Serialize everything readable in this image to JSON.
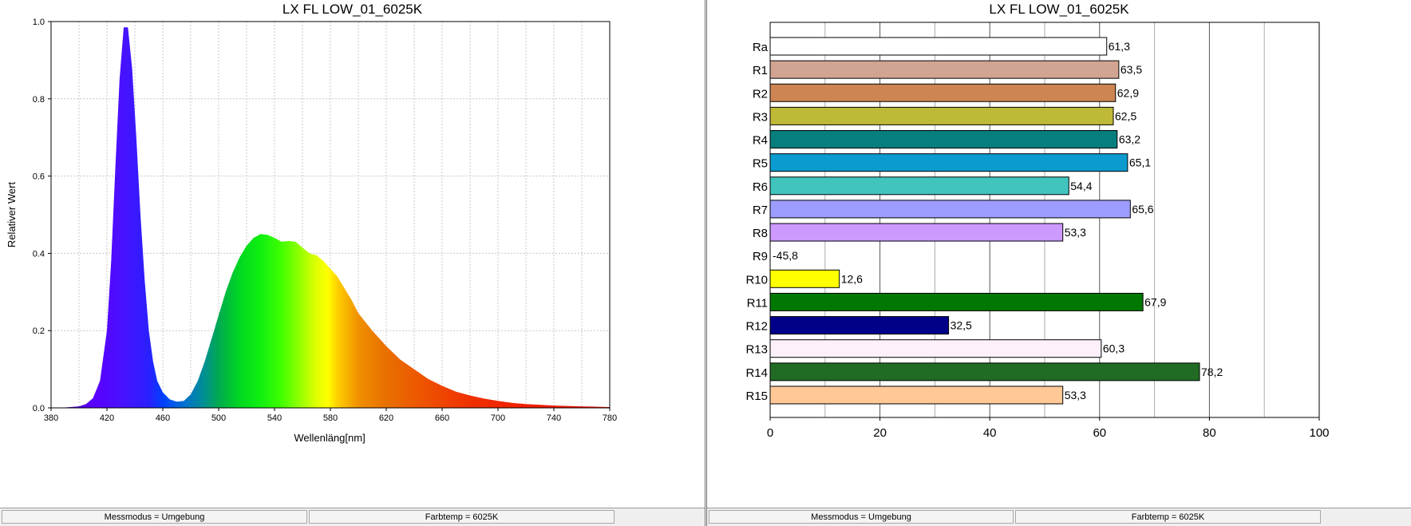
{
  "spectrum_panel": {
    "title": "LX FL LOW_01_6025K",
    "status": [
      "Messmodus = Umgebung",
      "Farbtemp = 6025K"
    ]
  },
  "cri_panel": {
    "title": "LX FL LOW_01_6025K",
    "status": [
      "Messmodus = Umgebung",
      "Farbtemp = 6025K"
    ]
  },
  "chart_data": [
    {
      "type": "area",
      "title": "LX FL LOW_01_6025K",
      "xlabel": "Wellenläng[nm]",
      "ylabel": "Relativer Wert",
      "xlim": [
        380,
        780
      ],
      "ylim": [
        0,
        1.0
      ],
      "x_ticks": [
        "380",
        "420",
        "460",
        "500",
        "540",
        "580",
        "620",
        "660",
        "700",
        "740",
        "780"
      ],
      "y_ticks": [
        "0.0",
        "0.2",
        "0.4",
        "0.6",
        "0.8",
        "1.0"
      ],
      "grid": true,
      "fill": "visible-spectrum gradient",
      "series": [
        {
          "x": [
            380,
            390,
            400,
            405,
            410,
            415,
            420,
            423,
            426,
            429,
            432,
            435,
            438,
            441,
            444,
            447,
            450,
            453,
            456,
            460,
            465,
            470,
            475,
            480,
            485,
            490,
            495,
            500,
            505,
            510,
            515,
            520,
            525,
            530,
            535,
            540,
            545,
            550,
            555,
            560,
            565,
            570,
            575,
            580,
            585,
            590,
            595,
            600,
            610,
            620,
            630,
            640,
            650,
            660,
            670,
            680,
            690,
            700,
            710,
            720,
            730,
            740,
            750,
            760,
            770,
            780
          ],
          "y": [
            0.0,
            0.001,
            0.004,
            0.01,
            0.025,
            0.07,
            0.2,
            0.38,
            0.62,
            0.85,
            0.985,
            0.985,
            0.88,
            0.7,
            0.5,
            0.33,
            0.2,
            0.12,
            0.07,
            0.04,
            0.022,
            0.016,
            0.018,
            0.035,
            0.07,
            0.12,
            0.18,
            0.24,
            0.3,
            0.35,
            0.39,
            0.42,
            0.44,
            0.45,
            0.448,
            0.44,
            0.43,
            0.432,
            0.43,
            0.415,
            0.4,
            0.395,
            0.38,
            0.36,
            0.34,
            0.31,
            0.28,
            0.245,
            0.2,
            0.16,
            0.125,
            0.1,
            0.075,
            0.057,
            0.042,
            0.032,
            0.024,
            0.018,
            0.013,
            0.01,
            0.008,
            0.006,
            0.005,
            0.004,
            0.003,
            0.002
          ]
        }
      ]
    },
    {
      "type": "bar",
      "orientation": "horizontal",
      "title": "LX FL LOW_01_6025K",
      "xlim": [
        0,
        100
      ],
      "x_ticks": [
        "0",
        "20",
        "40",
        "60",
        "80",
        "100"
      ],
      "categories": [
        "Ra",
        "R1",
        "R2",
        "R3",
        "R4",
        "R5",
        "R6",
        "R7",
        "R8",
        "R9",
        "R10",
        "R11",
        "R12",
        "R13",
        "R14",
        "R15"
      ],
      "values": [
        61.3,
        63.5,
        62.9,
        62.5,
        63.2,
        65.1,
        54.4,
        65.6,
        53.3,
        -45.8,
        12.6,
        67.9,
        32.5,
        60.3,
        78.2,
        53.3
      ],
      "value_labels": [
        "61,3",
        "63,5",
        "62,9",
        "62,5",
        "63,2",
        "65,1",
        "54,4",
        "65,6",
        "53,3",
        "-45,8",
        "12,6",
        "67,9",
        "32,5",
        "60,3",
        "78,2",
        "53,3"
      ],
      "colors": [
        "#ffffff",
        "#d1a491",
        "#cd8553",
        "#bfb938",
        "#067e7e",
        "#0b9bcf",
        "#41c4bd",
        "#9d9dff",
        "#cc99ff",
        "#ff0000",
        "#ffff00",
        "#007700",
        "#000088",
        "#fcf0fa",
        "#216b24",
        "#ffc896"
      ],
      "grid": true
    }
  ]
}
